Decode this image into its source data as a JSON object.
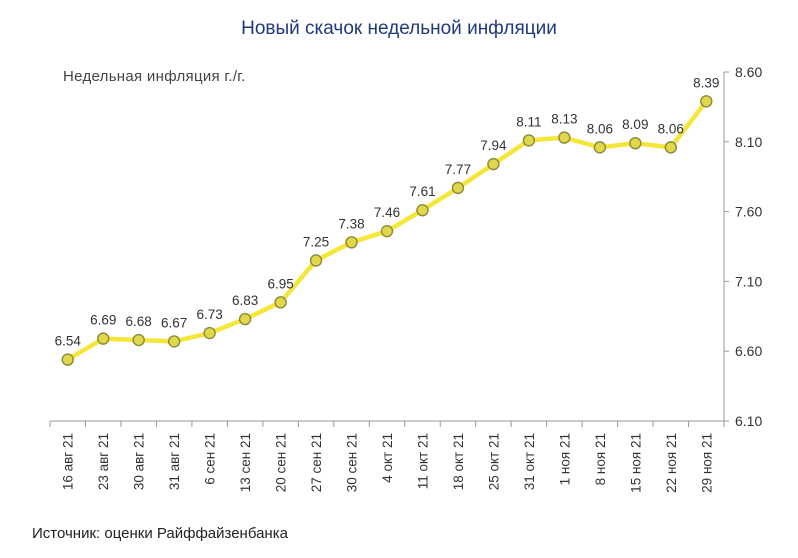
{
  "title": "Новый скачок недельной инфляции",
  "subtitle": "Недельная инфляция г./г.",
  "source": "Источник: оценки Райффайзенбанка",
  "colors": {
    "line": "#f5e63a",
    "marker_fill": "#e0d84a",
    "marker_stroke": "#8c8a3a",
    "axis": "#9a9a9a",
    "title": "#1f3a78"
  },
  "chart_data": {
    "type": "line",
    "categories": [
      "16 авг 21",
      "23 авг 21",
      "30 авг 21",
      "31 авг 21",
      "6 сен 21",
      "13 сен 21",
      "20 сен 21",
      "27 сен 21",
      "30 сен 21",
      "4 окт 21",
      "11 окт 21",
      "18 окт 21",
      "25 окт 21",
      "31 окт 21",
      "1 ноя 21",
      "8 ноя 21",
      "15 ноя 21",
      "22 ноя 21",
      "29 ноя 21"
    ],
    "values": [
      6.54,
      6.69,
      6.68,
      6.67,
      6.73,
      6.83,
      6.95,
      7.25,
      7.38,
      7.46,
      7.61,
      7.77,
      7.94,
      8.11,
      8.13,
      8.06,
      8.09,
      8.06,
      8.39
    ],
    "data_labels": [
      "6.54",
      "6.69",
      "6.68",
      "6.67",
      "6.73",
      "6.83",
      "6.95",
      "7.25",
      "7.38",
      "7.46",
      "7.61",
      "7.77",
      "7.94",
      "8.11",
      "8.13",
      "8.06",
      "8.09",
      "8.06",
      "8.39"
    ],
    "y_ticks": [
      "6.10",
      "6.60",
      "7.10",
      "7.60",
      "8.10",
      "8.60"
    ],
    "ylim": [
      6.1,
      8.6
    ],
    "y_axis_side": "right",
    "grid": false,
    "legend": "none"
  }
}
